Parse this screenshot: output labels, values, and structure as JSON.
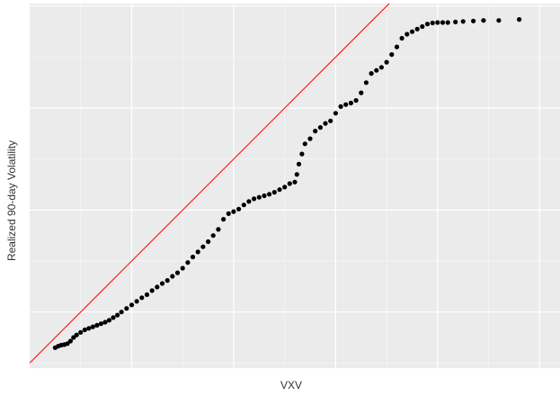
{
  "chart_data": {
    "type": "scatter",
    "title": "",
    "xlabel": "VXV",
    "ylabel": "Realized 90-day Volatility",
    "x_tick_labels_shown": false,
    "y_tick_labels_shown": false,
    "grid": true,
    "colors": {
      "panel_background": "#EBEBEB",
      "grid_major": "#FFFFFF",
      "grid_minor": "#F5F5F5",
      "points": "#000000",
      "reference_line": "#FF0000"
    },
    "reference_line": {
      "slope": 1,
      "intercept": 0,
      "label": ""
    },
    "xlim": [
      0,
      1.04
    ],
    "ylim": [
      -0.01,
      0.705
    ],
    "series": [
      {
        "name": "",
        "points": [
          [
            0.05,
            0.03
          ],
          [
            0.056,
            0.033
          ],
          [
            0.062,
            0.035
          ],
          [
            0.068,
            0.036
          ],
          [
            0.074,
            0.038
          ],
          [
            0.08,
            0.043
          ],
          [
            0.086,
            0.05
          ],
          [
            0.092,
            0.055
          ],
          [
            0.1,
            0.06
          ],
          [
            0.108,
            0.065
          ],
          [
            0.116,
            0.068
          ],
          [
            0.124,
            0.071
          ],
          [
            0.132,
            0.074
          ],
          [
            0.14,
            0.077
          ],
          [
            0.148,
            0.08
          ],
          [
            0.156,
            0.084
          ],
          [
            0.164,
            0.089
          ],
          [
            0.172,
            0.094
          ],
          [
            0.18,
            0.1
          ],
          [
            0.19,
            0.107
          ],
          [
            0.2,
            0.114
          ],
          [
            0.21,
            0.121
          ],
          [
            0.22,
            0.128
          ],
          [
            0.23,
            0.134
          ],
          [
            0.24,
            0.142
          ],
          [
            0.25,
            0.149
          ],
          [
            0.26,
            0.156
          ],
          [
            0.27,
            0.162
          ],
          [
            0.28,
            0.17
          ],
          [
            0.29,
            0.177
          ],
          [
            0.3,
            0.186
          ],
          [
            0.31,
            0.197
          ],
          [
            0.32,
            0.208
          ],
          [
            0.33,
            0.218
          ],
          [
            0.34,
            0.228
          ],
          [
            0.35,
            0.238
          ],
          [
            0.36,
            0.25
          ],
          [
            0.37,
            0.262
          ],
          [
            0.38,
            0.282
          ],
          [
            0.39,
            0.293
          ],
          [
            0.4,
            0.297
          ],
          [
            0.41,
            0.302
          ],
          [
            0.42,
            0.31
          ],
          [
            0.43,
            0.317
          ],
          [
            0.44,
            0.322
          ],
          [
            0.45,
            0.325
          ],
          [
            0.46,
            0.328
          ],
          [
            0.47,
            0.331
          ],
          [
            0.48,
            0.335
          ],
          [
            0.49,
            0.34
          ],
          [
            0.5,
            0.345
          ],
          [
            0.51,
            0.352
          ],
          [
            0.52,
            0.355
          ],
          [
            0.524,
            0.37
          ],
          [
            0.528,
            0.39
          ],
          [
            0.534,
            0.41
          ],
          [
            0.54,
            0.43
          ],
          [
            0.55,
            0.44
          ],
          [
            0.56,
            0.455
          ],
          [
            0.57,
            0.462
          ],
          [
            0.58,
            0.47
          ],
          [
            0.59,
            0.475
          ],
          [
            0.6,
            0.49
          ],
          [
            0.61,
            0.503
          ],
          [
            0.62,
            0.507
          ],
          [
            0.63,
            0.51
          ],
          [
            0.64,
            0.515
          ],
          [
            0.65,
            0.53
          ],
          [
            0.66,
            0.55
          ],
          [
            0.67,
            0.568
          ],
          [
            0.68,
            0.574
          ],
          [
            0.69,
            0.58
          ],
          [
            0.7,
            0.59
          ],
          [
            0.71,
            0.605
          ],
          [
            0.72,
            0.62
          ],
          [
            0.73,
            0.637
          ],
          [
            0.74,
            0.645
          ],
          [
            0.75,
            0.65
          ],
          [
            0.76,
            0.655
          ],
          [
            0.77,
            0.66
          ],
          [
            0.78,
            0.665
          ],
          [
            0.79,
            0.667
          ],
          [
            0.8,
            0.668
          ],
          [
            0.81,
            0.668
          ],
          [
            0.82,
            0.668
          ],
          [
            0.835,
            0.669
          ],
          [
            0.85,
            0.67
          ],
          [
            0.87,
            0.671
          ],
          [
            0.89,
            0.672
          ],
          [
            0.92,
            0.672
          ],
          [
            0.96,
            0.674
          ]
        ]
      }
    ]
  }
}
